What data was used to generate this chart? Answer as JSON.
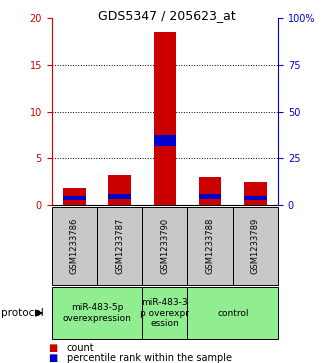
{
  "title": "GDS5347 / 205623_at",
  "samples": [
    "GSM1233786",
    "GSM1233787",
    "GSM1233790",
    "GSM1233788",
    "GSM1233789"
  ],
  "red_values": [
    1.8,
    3.2,
    18.5,
    3.0,
    2.5
  ],
  "blue_heights": [
    0.45,
    0.55,
    1.2,
    0.55,
    0.45
  ],
  "blue_bottoms": [
    0.5,
    0.65,
    6.3,
    0.65,
    0.5
  ],
  "left_ylim": [
    0,
    20
  ],
  "left_yticks": [
    0,
    5,
    10,
    15,
    20
  ],
  "right_ylim": [
    0,
    100
  ],
  "right_yticks": [
    0,
    25,
    50,
    75,
    100
  ],
  "right_yticklabels": [
    "0",
    "25",
    "50",
    "75",
    "100%"
  ],
  "left_axis_color": "#cc0000",
  "right_axis_color": "#0000cc",
  "bar_color_red": "#cc0000",
  "bar_color_blue": "#0000cc",
  "group_color": "#90ee90",
  "sample_box_color": "#c8c8c8",
  "bar_width": 0.5,
  "dotted_lines": [
    5,
    10,
    15
  ],
  "group_defs": [
    {
      "samples": [
        0,
        1
      ],
      "label": "miR-483-5p\noverexpression"
    },
    {
      "samples": [
        2,
        2
      ],
      "label": "miR-483-3\np overexpr\nession"
    },
    {
      "samples": [
        3,
        4
      ],
      "label": "control"
    }
  ],
  "protocol_label": "protocol",
  "legend_count": "count",
  "legend_percentile": "percentile rank within the sample",
  "title_fontsize": 9,
  "tick_fontsize": 7,
  "sample_fontsize": 6,
  "group_fontsize": 6.5,
  "legend_fontsize": 7
}
